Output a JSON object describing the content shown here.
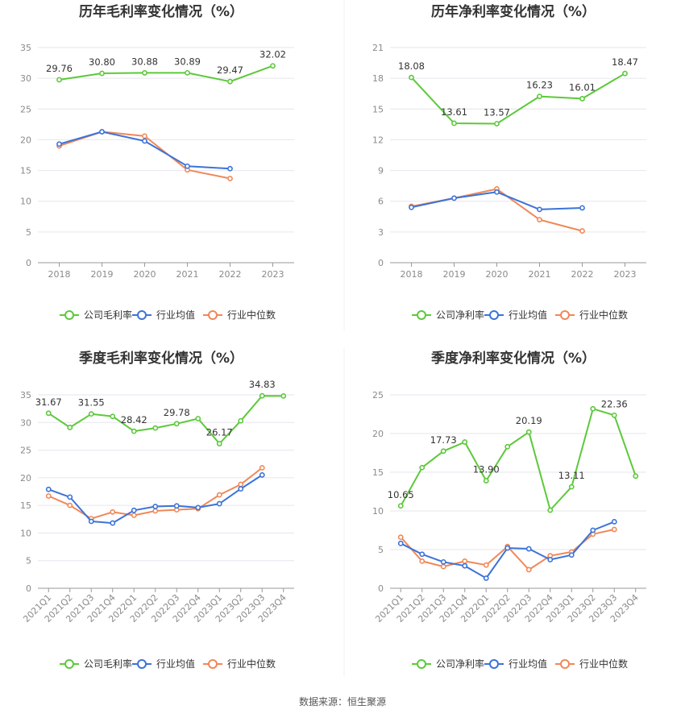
{
  "colors": {
    "company": "#5cc93a",
    "avg": "#3b73d9",
    "median": "#f08858",
    "grid": "#e6e6ee",
    "axis": "#999999"
  },
  "legend_labels": {
    "gross": [
      "公司毛利率",
      "行业均值",
      "行业中位数"
    ],
    "net": [
      "公司净利率",
      "行业均值",
      "行业中位数"
    ]
  },
  "source": "数据来源：恒生聚源",
  "chart_data": [
    {
      "type": "line",
      "title": "历年毛利率变化情况（%）",
      "categories": [
        "2018",
        "2019",
        "2020",
        "2021",
        "2022",
        "2023"
      ],
      "ylim": [
        0,
        35
      ],
      "yticks": [
        0,
        5,
        10,
        15,
        20,
        25,
        30,
        35
      ],
      "series": [
        {
          "name": "公司毛利率",
          "values": [
            29.76,
            30.8,
            30.88,
            30.89,
            29.47,
            32.02
          ],
          "labels": [
            "29.76",
            "30.80",
            "30.88",
            "30.89",
            "29.47",
            "32.02"
          ]
        },
        {
          "name": "行业均值",
          "values": [
            19.3,
            21.3,
            19.8,
            15.7,
            15.3,
            null
          ]
        },
        {
          "name": "行业中位数",
          "values": [
            19.0,
            21.3,
            20.6,
            15.1,
            13.7,
            null
          ]
        }
      ]
    },
    {
      "type": "line",
      "title": "历年净利率变化情况（%）",
      "categories": [
        "2018",
        "2019",
        "2020",
        "2021",
        "2022",
        "2023"
      ],
      "ylim": [
        0,
        21
      ],
      "yticks": [
        0,
        3,
        6,
        9,
        12,
        15,
        18,
        21
      ],
      "series": [
        {
          "name": "公司净利率",
          "values": [
            18.08,
            13.61,
            13.57,
            16.23,
            16.01,
            18.47
          ],
          "labels": [
            "18.08",
            "13.61",
            "13.57",
            "16.23",
            "16.01",
            "18.47"
          ]
        },
        {
          "name": "行业均值",
          "values": [
            5.4,
            6.3,
            6.9,
            5.2,
            5.35,
            null
          ]
        },
        {
          "name": "行业中位数",
          "values": [
            5.5,
            6.3,
            7.2,
            4.2,
            3.1,
            null
          ]
        }
      ]
    },
    {
      "type": "line",
      "title": "季度毛利率变化情况（%）",
      "categories": [
        "2021Q1",
        "2021Q2",
        "2021Q3",
        "2021Q4",
        "2022Q1",
        "2022Q2",
        "2022Q3",
        "2022Q4",
        "2023Q1",
        "2023Q2",
        "2023Q3",
        "2023Q4"
      ],
      "ylim": [
        0,
        35
      ],
      "yticks": [
        0,
        5,
        10,
        15,
        20,
        25,
        30,
        35
      ],
      "series": [
        {
          "name": "公司毛利率",
          "values": [
            31.67,
            29.1,
            31.55,
            31.1,
            28.42,
            29.0,
            29.78,
            30.7,
            26.17,
            30.3,
            34.83,
            34.8
          ],
          "labels": [
            "31.67",
            "",
            "31.55",
            "",
            "28.42",
            "",
            "29.78",
            "",
            "26.17",
            "",
            "34.83",
            ""
          ]
        },
        {
          "name": "行业均值",
          "values": [
            17.9,
            16.5,
            12.1,
            11.8,
            14.1,
            14.8,
            14.9,
            14.6,
            15.3,
            18.0,
            20.5,
            null
          ]
        },
        {
          "name": "行业中位数",
          "values": [
            16.7,
            15.0,
            12.6,
            13.8,
            13.2,
            14.0,
            14.2,
            14.4,
            16.9,
            18.8,
            21.8,
            null
          ]
        }
      ]
    },
    {
      "type": "line",
      "title": "季度净利率变化情况（%）",
      "categories": [
        "2021Q1",
        "2021Q2",
        "2021Q3",
        "2021Q4",
        "2022Q1",
        "2022Q2",
        "2022Q3",
        "2022Q4",
        "2023Q1",
        "2023Q2",
        "2023Q3",
        "2023Q4"
      ],
      "ylim": [
        0,
        25
      ],
      "yticks": [
        0,
        5,
        10,
        15,
        20,
        25
      ],
      "series": [
        {
          "name": "公司净利率",
          "values": [
            10.65,
            15.6,
            17.73,
            18.9,
            13.9,
            18.3,
            20.19,
            10.1,
            13.11,
            23.2,
            22.36,
            14.5
          ],
          "labels": [
            "10.65",
            "",
            "17.73",
            "",
            "13.90",
            "",
            "20.19",
            "",
            "13.11",
            "",
            "22.36",
            ""
          ]
        },
        {
          "name": "行业均值",
          "values": [
            5.8,
            4.4,
            3.4,
            2.9,
            1.3,
            5.2,
            5.1,
            3.7,
            4.3,
            7.5,
            8.6,
            null
          ]
        },
        {
          "name": "行业中位数",
          "values": [
            6.6,
            3.5,
            2.8,
            3.5,
            3.0,
            5.4,
            2.4,
            4.2,
            4.7,
            7.0,
            7.6,
            null
          ]
        }
      ]
    }
  ]
}
